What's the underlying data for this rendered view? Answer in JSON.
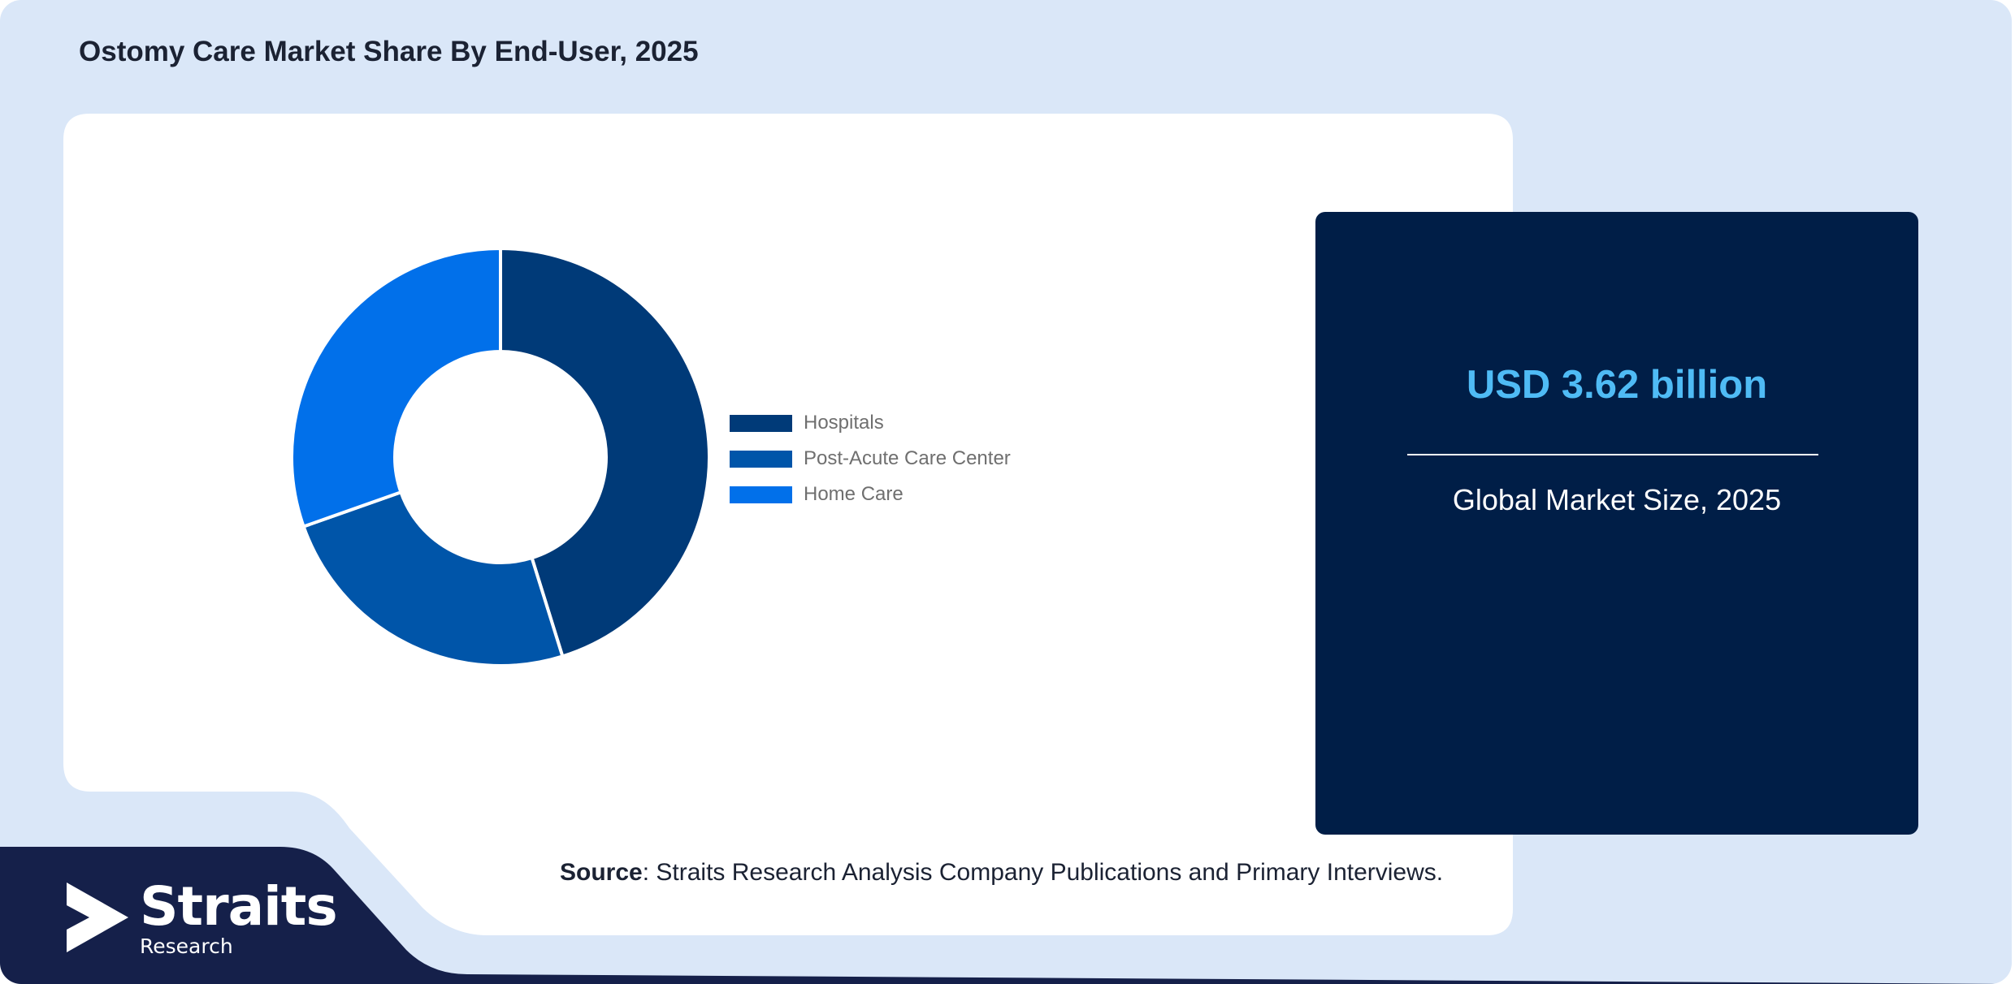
{
  "page": {
    "title": "Ostomy Care Market Share By End-User, 2025"
  },
  "chart_data": {
    "type": "pie",
    "variant": "donut",
    "title": "Ostomy Care Market Share By End-User, 2025",
    "categories": [
      "Hospitals",
      "Post-Acute Care Center",
      "Home Care"
    ],
    "values": [
      45.2,
      24.4,
      30.4
    ],
    "unit": "%",
    "colors": [
      "#003a78",
      "#0055a9",
      "#0170ea"
    ],
    "legend": "right",
    "start_angle": "top, clockwise"
  },
  "stat": {
    "value": "USD 3.62 billion",
    "label": "Global Market Size, 2025"
  },
  "source": {
    "prefix": "Source",
    "text": ": Straits Research Analysis Company Publications and Primary Interviews."
  },
  "brand": {
    "name": "Straits",
    "sub": "Research",
    "colors": {
      "dark_navy": "#15204a",
      "box_navy": "#001e47",
      "accent": "#4fbbf5",
      "background": "#dae7f8"
    }
  }
}
